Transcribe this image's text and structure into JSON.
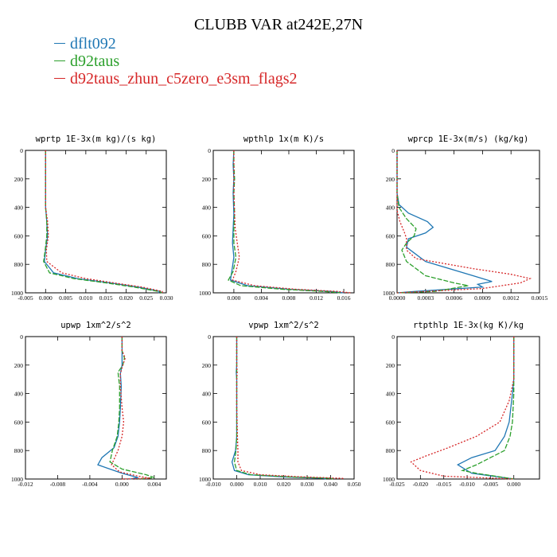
{
  "title": "CLUBB VAR at242E,27N",
  "legend": [
    {
      "label": "dflt092",
      "color": "#1f77b4"
    },
    {
      "label": "d92taus",
      "color": "#2ca02c"
    },
    {
      "label": "d92taus_zhun_c5zero_e3sm_flags2",
      "color": "#d62728"
    }
  ],
  "chart_data": [
    {
      "type": "line",
      "title": "wprtp  1E-3x(m kg)/(s kg)",
      "xlim": [
        -0.005,
        0.03
      ],
      "ylim": [
        0,
        1000
      ],
      "xticks": [
        -0.005,
        0.0,
        0.005,
        0.01,
        0.015,
        0.02,
        0.025,
        0.03
      ],
      "xticklabels": [
        "-0.005",
        "0.000",
        "0.005",
        "0.010",
        "0.015",
        "0.020",
        "0.025",
        "0.030"
      ],
      "yticks": [
        0,
        200,
        400,
        600,
        800,
        1000
      ],
      "yticklabels": [
        "0",
        "200",
        "400",
        "600",
        "800",
        "1000"
      ],
      "series": [
        {
          "name": "dflt092",
          "x": [
            0.0,
            0.0,
            0.0,
            0.0,
            0.0,
            0.0003,
            0.0005,
            0.0,
            -0.0003,
            0.002,
            0.008,
            0.016,
            0.023,
            0.0285,
            0.028
          ],
          "y": [
            0,
            100,
            200,
            300,
            400,
            500,
            600,
            700,
            780,
            860,
            900,
            930,
            960,
            990,
            1000
          ]
        },
        {
          "name": "d92taus",
          "x": [
            0.0,
            0.0,
            0.0,
            0.0,
            0.0,
            0.0003,
            0.0003,
            -0.0001,
            -0.0005,
            0.001,
            0.007,
            0.015,
            0.022,
            0.028,
            0.029
          ],
          "y": [
            0,
            100,
            200,
            300,
            400,
            500,
            600,
            700,
            780,
            860,
            900,
            930,
            960,
            990,
            1000
          ]
        },
        {
          "name": "d92taus_zhun_c5zero_e3sm_flags2",
          "x": [
            0.0,
            0.0,
            0.0,
            0.0,
            0.0,
            0.0005,
            0.0007,
            0.0002,
            0.0003,
            0.004,
            0.01,
            0.017,
            0.024,
            0.029,
            0.029
          ],
          "y": [
            0,
            100,
            200,
            300,
            400,
            500,
            600,
            700,
            780,
            860,
            900,
            930,
            960,
            990,
            1000
          ]
        }
      ]
    },
    {
      "type": "line",
      "title": "wpthlp  1x(m K)/s",
      "xlim": [
        -0.003,
        0.0175
      ],
      "ylim": [
        0,
        1000
      ],
      "xticks": [
        0.0,
        0.004,
        0.008,
        0.012,
        0.016
      ],
      "xticklabels": [
        "0.000",
        "0.004",
        "0.008",
        "0.012",
        "0.016"
      ],
      "yticks": [
        0,
        200,
        400,
        600,
        800,
        1000
      ],
      "yticklabels": [
        "0",
        "200",
        "400",
        "600",
        "800",
        "1000"
      ],
      "series": [
        {
          "name": "dflt092",
          "x": [
            0.0,
            -0.0001,
            0.0,
            -0.0001,
            0.0,
            -0.0001,
            -0.0002,
            0.0,
            -0.0003,
            -0.0005,
            0.002,
            0.008,
            0.014,
            0.016
          ],
          "y": [
            0,
            100,
            200,
            300,
            450,
            550,
            650,
            750,
            850,
            910,
            950,
            975,
            990,
            1000
          ]
        },
        {
          "name": "d92taus",
          "x": [
            0.0,
            0.0,
            0.0001,
            0.0,
            0.0001,
            0.0,
            0.0,
            0.0003,
            -0.0001,
            -0.0008,
            0.001,
            0.007,
            0.013,
            0.0155
          ],
          "y": [
            0,
            100,
            200,
            300,
            450,
            550,
            650,
            750,
            850,
            910,
            950,
            975,
            990,
            1000
          ]
        },
        {
          "name": "d92taus_zhun_c5zero_e3sm_flags2",
          "x": [
            0.0,
            0.0,
            0.0,
            0.0,
            0.0001,
            0.0002,
            0.0005,
            0.0008,
            0.0003,
            -0.0002,
            0.003,
            0.009,
            0.015,
            0.017
          ],
          "y": [
            0,
            100,
            200,
            300,
            450,
            550,
            650,
            750,
            850,
            910,
            950,
            975,
            990,
            1000
          ]
        }
      ]
    },
    {
      "type": "line",
      "title": "wprcp  1E-3x(m/s) (kg/kg)",
      "xlim": [
        0.0,
        0.0015
      ],
      "ylim": [
        0,
        1000
      ],
      "xticks": [
        0.0,
        0.0003,
        0.0006,
        0.0009,
        0.0012,
        0.0015
      ],
      "xticklabels": [
        "0.0000",
        "0.0003",
        "0.0006",
        "0.0009",
        "0.0012",
        "0.0015"
      ],
      "yticks": [
        0,
        200,
        400,
        600,
        800,
        1000
      ],
      "yticklabels": [
        "0",
        "200",
        "400",
        "600",
        "800",
        "1000"
      ],
      "series": [
        {
          "name": "dflt092",
          "x": [
            0.0,
            0.0,
            2e-05,
            0.00012,
            0.00032,
            0.00038,
            0.0003,
            0.00012,
            0.0001,
            0.0003,
            0.0008,
            0.001,
            0.00085,
            0.0009,
            0.0002,
            0.0
          ],
          "y": [
            0,
            300,
            380,
            440,
            500,
            540,
            580,
            620,
            680,
            780,
            880,
            920,
            940,
            960,
            990,
            1000
          ]
        },
        {
          "name": "d92taus",
          "x": [
            0.0,
            0.0,
            2e-05,
            0.0001,
            0.0002,
            0.00018,
            0.0001,
            5e-05,
            0.0001,
            0.0003,
            0.0006,
            0.00075,
            0.0004,
            0.0
          ],
          "y": [
            0,
            300,
            400,
            480,
            550,
            600,
            650,
            700,
            780,
            880,
            930,
            950,
            990,
            1000
          ]
        },
        {
          "name": "d92taus_zhun_c5zero_e3sm_flags2",
          "x": [
            0.0,
            0.0,
            0.0,
            3e-05,
            8e-05,
            0.0001,
            0.0001,
            0.0002,
            0.0008,
            0.0012,
            0.0014,
            0.0013,
            0.0009,
            0.0
          ],
          "y": [
            0,
            300,
            420,
            500,
            580,
            620,
            700,
            760,
            830,
            870,
            900,
            930,
            970,
            1000
          ]
        }
      ]
    },
    {
      "type": "line",
      "title": "upwp  1xm^2/s^2",
      "xlim": [
        -0.012,
        0.0055
      ],
      "ylim": [
        0,
        1000
      ],
      "xticks": [
        -0.012,
        -0.008,
        -0.004,
        0.0,
        0.004
      ],
      "xticklabels": [
        "-0.012",
        "-0.008",
        "-0.004",
        "0.000",
        "0.004"
      ],
      "yticks": [
        0,
        200,
        400,
        600,
        800,
        1000
      ],
      "yticklabels": [
        "0",
        "200",
        "400",
        "600",
        "800",
        "1000"
      ],
      "series": [
        {
          "name": "dflt092",
          "x": [
            0.0,
            0.0,
            0.0,
            -0.0002,
            -0.0001,
            -0.0002,
            -0.0003,
            -0.0005,
            -0.001,
            -0.0025,
            -0.003,
            -0.0015,
            0.0,
            0.002,
            0.001
          ],
          "y": [
            0,
            100,
            200,
            260,
            350,
            500,
            600,
            700,
            780,
            850,
            900,
            930,
            960,
            990,
            1000
          ]
        },
        {
          "name": "d92taus",
          "x": [
            0.0,
            0.0,
            0.0003,
            0.0001,
            -0.0005,
            -0.0003,
            -0.0003,
            -0.0004,
            -0.0006,
            -0.0012,
            -0.0015,
            0.0,
            0.003,
            0.004,
            0.002
          ],
          "y": [
            0,
            100,
            150,
            200,
            250,
            350,
            500,
            600,
            700,
            800,
            880,
            930,
            970,
            990,
            1000
          ]
        },
        {
          "name": "d92taus_zhun_c5zero_e3sm_flags2",
          "x": [
            0.0,
            0.0,
            0.0004,
            0.0001,
            -0.0002,
            -0.0002,
            0.0,
            0.0002,
            0.0,
            -0.0005,
            -0.0013,
            -0.0003,
            0.002,
            0.0035,
            0.0
          ],
          "y": [
            0,
            100,
            150,
            200,
            260,
            350,
            500,
            600,
            700,
            800,
            900,
            950,
            980,
            995,
            1000
          ]
        }
      ]
    },
    {
      "type": "line",
      "title": "vpwp  1xm^2/s^2",
      "xlim": [
        -0.01,
        0.05
      ],
      "ylim": [
        0,
        1000
      ],
      "xticks": [
        -0.01,
        0.0,
        0.01,
        0.02,
        0.03,
        0.04,
        0.05
      ],
      "xticklabels": [
        "-0.010",
        "0.000",
        "0.010",
        "0.020",
        "0.030",
        "0.040",
        "0.050"
      ],
      "yticks": [
        0,
        200,
        400,
        600,
        800,
        1000
      ],
      "yticklabels": [
        "0",
        "200",
        "400",
        "600",
        "800",
        "1000"
      ],
      "series": [
        {
          "name": "dflt092",
          "x": [
            0.0,
            0.0,
            -0.0002,
            0.0,
            0.0,
            0.0,
            -0.0005,
            -0.002,
            -0.001,
            0.005,
            0.02,
            0.037,
            0.038
          ],
          "y": [
            0,
            200,
            250,
            300,
            500,
            700,
            800,
            880,
            940,
            970,
            985,
            995,
            1000
          ]
        },
        {
          "name": "d92taus",
          "x": [
            0.0,
            0.0,
            0.0,
            0.0,
            0.0,
            0.0,
            -0.0003,
            -0.001,
            0.0,
            0.006,
            0.022,
            0.04,
            0.041
          ],
          "y": [
            0,
            200,
            250,
            300,
            500,
            700,
            800,
            880,
            940,
            970,
            985,
            995,
            1000
          ]
        },
        {
          "name": "d92taus_zhun_c5zero_e3sm_flags2",
          "x": [
            0.0,
            0.0,
            0.0002,
            0.0,
            0.0,
            0.0003,
            0.0005,
            0.0005,
            0.002,
            0.01,
            0.028,
            0.045,
            0.046
          ],
          "y": [
            0,
            200,
            250,
            300,
            500,
            700,
            800,
            880,
            940,
            970,
            985,
            995,
            1000
          ]
        }
      ]
    },
    {
      "type": "line",
      "title": "rtpthlp  1E-3x(kg K)/kg",
      "xlim": [
        -0.025,
        0.0055
      ],
      "ylim": [
        0,
        1000
      ],
      "xticks": [
        -0.025,
        -0.02,
        -0.015,
        -0.01,
        -0.005,
        0.0
      ],
      "xticklabels": [
        "-0.025",
        "-0.020",
        "-0.015",
        "-0.010",
        "-0.005",
        "0.000"
      ],
      "yticks": [
        0,
        200,
        400,
        600,
        800,
        1000
      ],
      "yticklabels": [
        "0",
        "200",
        "400",
        "600",
        "800",
        "1000"
      ],
      "series": [
        {
          "name": "dflt092",
          "x": [
            0.0,
            0.0,
            -0.0003,
            -0.001,
            -0.002,
            -0.004,
            -0.009,
            -0.012,
            -0.01,
            -0.009,
            0.0
          ],
          "y": [
            0,
            300,
            400,
            600,
            700,
            800,
            850,
            900,
            940,
            960,
            1000
          ]
        },
        {
          "name": "d92taus",
          "x": [
            0.0,
            0.0,
            0.0,
            -0.0003,
            -0.0008,
            -0.002,
            -0.005,
            -0.008,
            -0.011,
            -0.008,
            0.0
          ],
          "y": [
            0,
            300,
            400,
            600,
            700,
            800,
            850,
            900,
            940,
            960,
            1000
          ]
        },
        {
          "name": "d92taus_zhun_c5zero_e3sm_flags2",
          "x": [
            0.0,
            0.0,
            -0.001,
            -0.003,
            -0.008,
            -0.014,
            -0.019,
            -0.022,
            -0.02,
            -0.015,
            0.0
          ],
          "y": [
            0,
            300,
            450,
            600,
            700,
            780,
            840,
            880,
            940,
            980,
            1000
          ]
        }
      ]
    }
  ]
}
